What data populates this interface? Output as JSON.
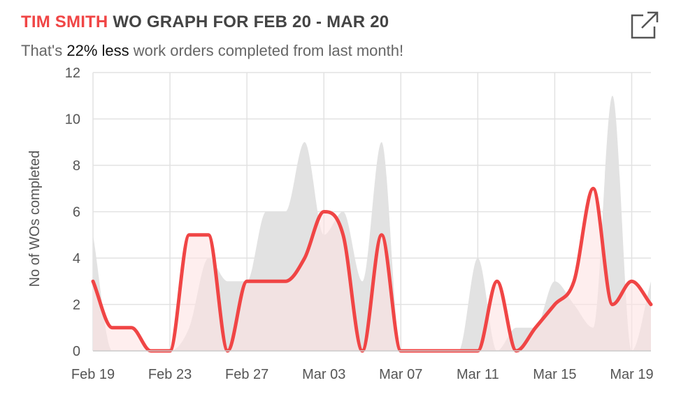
{
  "header": {
    "name": "TIM SMITH",
    "title_rest": " WO GRAPH FOR FEB 20 - MAR 20"
  },
  "subtitle": {
    "prefix": "That's ",
    "highlight": "22% less",
    "suffix": " work orders completed from last month!"
  },
  "icons": {
    "expand": "external-link-icon"
  },
  "colors": {
    "current": "#f04545",
    "current_fill": "#fde3e3",
    "previous_fill": "#e2e2e2",
    "grid": "#e2e2e2"
  },
  "chart_data": {
    "type": "area",
    "title": "",
    "xlabel": "",
    "ylabel": "No of WOs completed",
    "ylim": [
      0,
      12
    ],
    "yticks": [
      0,
      2,
      4,
      6,
      8,
      10,
      12
    ],
    "xtick_labels": [
      "Feb 19",
      "Feb 23",
      "Feb 27",
      "Mar 03",
      "Mar 07",
      "Mar 11",
      "Mar 15",
      "Mar 19"
    ],
    "x": [
      "Feb 19",
      "Feb 20",
      "Feb 21",
      "Feb 22",
      "Feb 23",
      "Feb 24",
      "Feb 25",
      "Feb 26",
      "Feb 27",
      "Feb 28",
      "Feb 29",
      "Mar 01",
      "Mar 02",
      "Mar 03",
      "Mar 04",
      "Mar 05",
      "Mar 06",
      "Mar 07",
      "Mar 08",
      "Mar 09",
      "Mar 10",
      "Mar 11",
      "Mar 12",
      "Mar 13",
      "Mar 14",
      "Mar 15",
      "Mar 16",
      "Mar 17",
      "Mar 18",
      "Mar 19"
    ],
    "grid": true,
    "series": [
      {
        "values": [
          3,
          1,
          1,
          0,
          0,
          5,
          5,
          0,
          3,
          3,
          3,
          4,
          6,
          5,
          0,
          5,
          0,
          0,
          0,
          0,
          0,
          3,
          0,
          1,
          2,
          3,
          7,
          2,
          3,
          2
        ]
      },
      {
        "values": [
          5,
          0,
          0,
          0,
          0,
          1,
          4,
          3,
          3,
          6,
          6,
          9,
          5,
          6,
          3,
          9,
          0,
          0,
          0,
          0,
          4,
          0,
          1,
          1,
          3,
          2,
          1,
          11,
          0,
          3
        ]
      }
    ]
  }
}
